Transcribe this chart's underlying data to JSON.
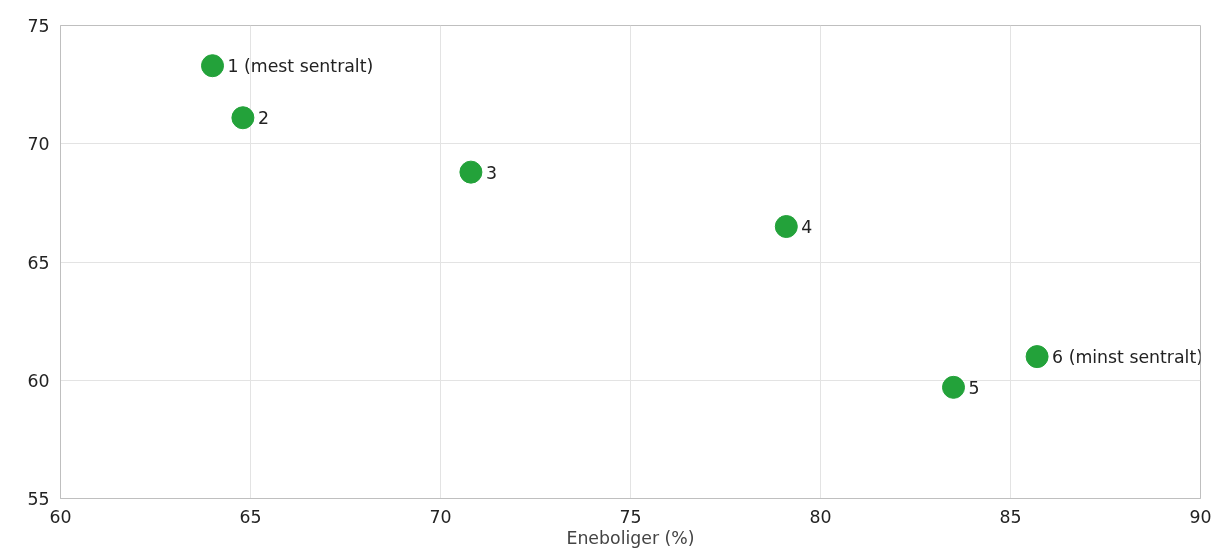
{
  "chart_data": {
    "type": "scatter",
    "xlabel": "Eneboliger (%)",
    "x": [
      64.0,
      64.8,
      70.8,
      79.1,
      83.5,
      85.7
    ],
    "series": [
      {
        "color": "#23a23a",
        "values": [
          73.3,
          71.1,
          68.8,
          66.5,
          59.7,
          61.0
        ]
      }
    ],
    "annotations": [
      {
        "text": "1 (mest sentralt)",
        "x": 64.0,
        "y": 73.3
      },
      {
        "text": "2",
        "x": 64.8,
        "y": 71.1
      },
      {
        "text": "3",
        "x": 70.8,
        "y": 68.8
      },
      {
        "text": "4",
        "x": 79.1,
        "y": 66.5
      },
      {
        "text": "5",
        "x": 83.5,
        "y": 59.7
      },
      {
        "text": "6 (minst sentralt)",
        "x": 85.7,
        "y": 61.0
      }
    ],
    "xlim": [
      60,
      90
    ],
    "xticks": [
      60,
      65,
      70,
      75,
      80,
      85,
      90
    ],
    "ylim": [
      55,
      75
    ],
    "yticks": [
      55,
      60,
      65,
      70,
      75
    ],
    "grid": true,
    "marker": "circle"
  }
}
